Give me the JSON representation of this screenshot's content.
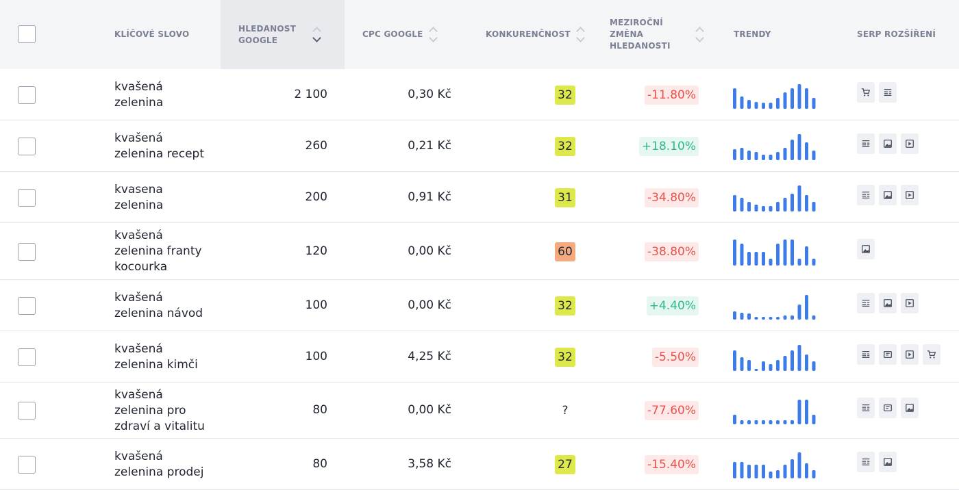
{
  "header": {
    "keyword": "KLÍČOVÉ SLOVO",
    "volume_line1": "HLEDANOST",
    "volume_line2": "GOOGLE",
    "cpc": "CPC GOOGLE",
    "competition": "KONKURENČNOST",
    "yoy_line1": "MEZIROČNÍ",
    "yoy_line2": "ZMĚNA",
    "yoy_line3": "HLEDANOSTI",
    "trends": "TRENDY",
    "serp": "SERP ROZŠÍŘENÍ"
  },
  "colors": {
    "competition_low": "#dde94a",
    "competition_mid": "#f5a97f",
    "trend_bar": "#3d7be8"
  },
  "rows": [
    {
      "kw1": "kvašená",
      "kw2": "zelenina",
      "kw3": "",
      "volume": "2 100",
      "cpc": "0,30 Kč",
      "comp": "32",
      "yoy": "-11.80%",
      "yoy_sign": "neg",
      "trend": [
        30,
        18,
        13,
        10,
        9,
        9,
        16,
        24,
        30,
        36,
        30,
        16
      ],
      "serp": [
        "shopping-icon",
        "featured-snippet-icon"
      ]
    },
    {
      "kw1": "kvašená",
      "kw2": "zelenina recept",
      "kw3": "",
      "volume": "260",
      "cpc": "0,21 Kč",
      "comp": "32",
      "yoy": "+18.10%",
      "yoy_sign": "pos",
      "trend": [
        16,
        18,
        14,
        12,
        8,
        8,
        12,
        18,
        30,
        38,
        26,
        14
      ],
      "serp": [
        "featured-snippet-icon",
        "image-icon",
        "video-icon"
      ]
    },
    {
      "kw1": "kvasena",
      "kw2": "zelenina",
      "kw3": "",
      "volume": "200",
      "cpc": "0,91 Kč",
      "comp": "31",
      "yoy": "-34.80%",
      "yoy_sign": "neg",
      "trend": [
        24,
        20,
        14,
        10,
        8,
        8,
        14,
        20,
        26,
        38,
        24,
        14
      ],
      "serp": [
        "featured-snippet-icon",
        "image-icon",
        "video-icon"
      ]
    },
    {
      "kw1": "kvašená",
      "kw2": "zelenina franty",
      "kw3": "kocourka",
      "volume": "120",
      "cpc": "0,00 Kč",
      "comp": "60",
      "yoy": "-38.80%",
      "yoy_sign": "neg",
      "trend": [
        38,
        32,
        20,
        20,
        20,
        10,
        32,
        38,
        38,
        10,
        28,
        10
      ],
      "serp": [
        "image-icon"
      ]
    },
    {
      "kw1": "kvašená",
      "kw2": "zelenina návod",
      "kw3": "",
      "volume": "100",
      "cpc": "0,00 Kč",
      "comp": "32",
      "yoy": "+4.40%",
      "yoy_sign": "pos",
      "trend": [
        12,
        10,
        9,
        4,
        4,
        4,
        4,
        6,
        6,
        22,
        36,
        6
      ],
      "serp": [
        "featured-snippet-icon",
        "image-icon",
        "video-icon"
      ]
    },
    {
      "kw1": "kvašená",
      "kw2": "zelenina kimči",
      "kw3": "",
      "volume": "100",
      "cpc": "4,25 Kč",
      "comp": "32",
      "yoy": "-5.50%",
      "yoy_sign": "neg",
      "trend": [
        30,
        20,
        16,
        2,
        14,
        10,
        16,
        22,
        30,
        38,
        24,
        14
      ],
      "serp": [
        "featured-snippet-icon",
        "reviews-icon",
        "video-icon",
        "shopping-icon"
      ]
    },
    {
      "kw1": "kvašená",
      "kw2": "zelenina pro",
      "kw3": "zdraví a vitalitu",
      "volume": "80",
      "cpc": "0,00 Kč",
      "comp": "?",
      "yoy": "-77.60%",
      "yoy_sign": "neg",
      "trend": [
        14,
        6,
        6,
        6,
        6,
        6,
        6,
        6,
        6,
        36,
        36,
        14
      ],
      "serp": [
        "featured-snippet-icon",
        "reviews-icon",
        "image-icon"
      ]
    },
    {
      "kw1": "kvašená",
      "kw2": "zelenina prodej",
      "kw3": "",
      "volume": "80",
      "cpc": "3,58 Kč",
      "comp": "27",
      "yoy": "-15.40%",
      "yoy_sign": "neg",
      "trend": [
        24,
        24,
        20,
        20,
        20,
        10,
        12,
        20,
        28,
        38,
        22,
        12
      ],
      "serp": [
        "featured-snippet-icon",
        "image-icon"
      ]
    }
  ]
}
